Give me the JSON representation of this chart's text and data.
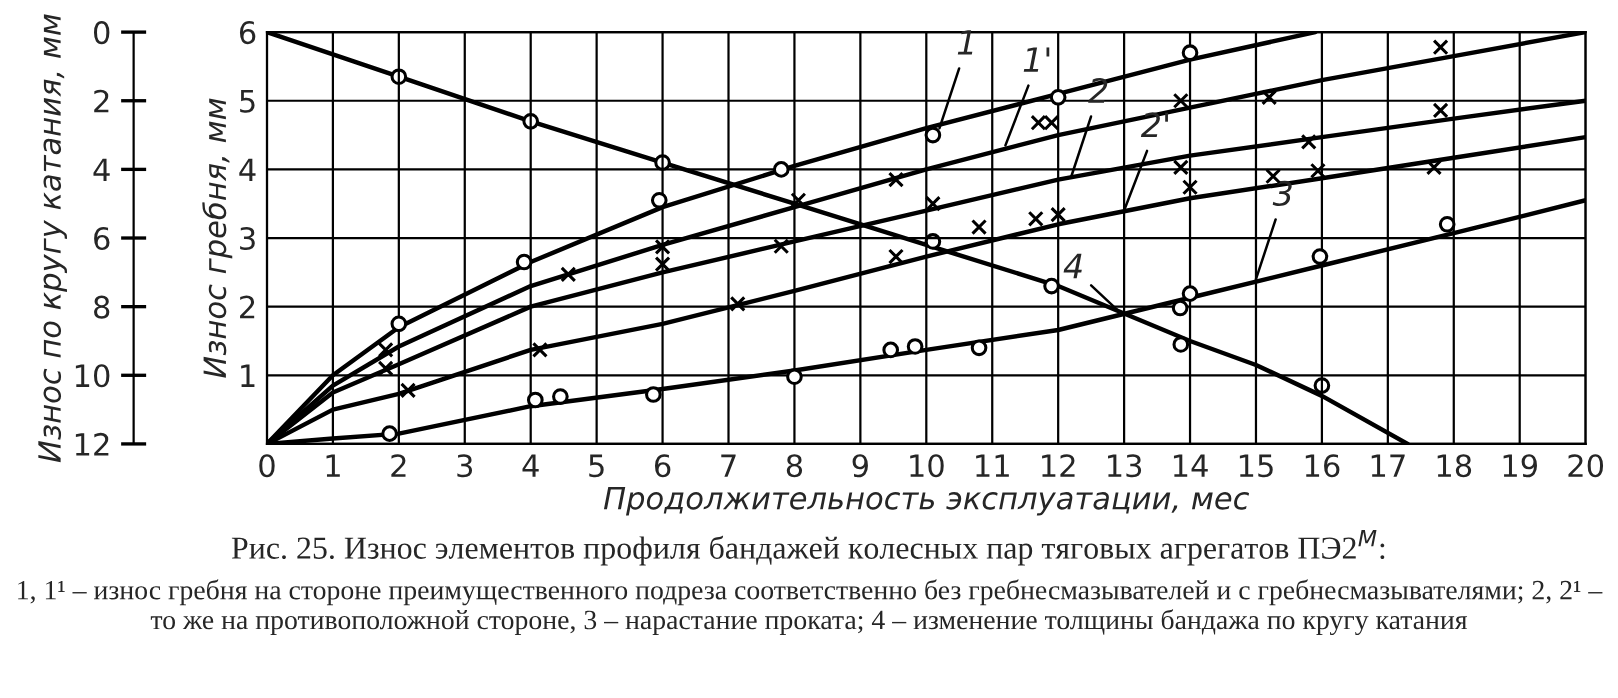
{
  "chart_data": {
    "type": "line",
    "title": "Рис. 25. Износ элементов профиля бандажей колесных пар тяговых агрегатов ПЭ2$^{М}$:",
    "xlabel": "Продолжительность эксплуатации, мес",
    "ylabel": "Износ гребня, мм",
    "y2label": "Износ по кругу катания, мм",
    "xlim": [
      0,
      20
    ],
    "xticks": [
      0,
      1,
      2,
      3,
      4,
      5,
      6,
      7,
      8,
      9,
      10,
      11,
      12,
      13,
      14,
      15,
      16,
      17,
      18,
      19,
      20
    ],
    "ylim": [
      0,
      6
    ],
    "yticks": [
      {
        "value": 0,
        "label": null
      },
      1,
      2,
      3,
      4,
      5,
      6
    ],
    "y2lim": [
      12,
      0
    ],
    "y2ticks": [
      0,
      2,
      4,
      6,
      8,
      10,
      12
    ],
    "grid": true,
    "marker": "none",
    "line_style": "solid",
    "series": [
      {
        "type": "line",
        "color": "#000000",
        "x": [
          0,
          1,
          2,
          4,
          6,
          8,
          10,
          12,
          14,
          15.9
        ],
        "values": [
          0,
          1.0,
          1.7,
          2.65,
          3.45,
          4.05,
          4.6,
          5.1,
          5.6,
          6.0
        ]
      },
      {
        "type": "line",
        "color": "#000000",
        "x": [
          0,
          1,
          2,
          4,
          6,
          8,
          10,
          12,
          14,
          16,
          18,
          20
        ],
        "values": [
          0,
          0.85,
          1.42,
          2.3,
          2.9,
          3.45,
          4.0,
          4.5,
          4.9,
          5.3,
          5.65,
          6.0
        ]
      },
      {
        "type": "line",
        "color": "#000000",
        "x": [
          0,
          1,
          2,
          4,
          6,
          8,
          10,
          12,
          14,
          16,
          18,
          20
        ],
        "values": [
          0,
          0.75,
          1.16,
          2.0,
          2.5,
          2.95,
          3.4,
          3.85,
          4.2,
          4.47,
          4.74,
          5.0
        ]
      },
      {
        "type": "line",
        "color": "#000000",
        "x": [
          0,
          1,
          2,
          4,
          6,
          8,
          10,
          12,
          14,
          16,
          18,
          20
        ],
        "values": [
          0,
          0.5,
          0.73,
          1.37,
          1.75,
          2.23,
          2.73,
          3.2,
          3.58,
          3.87,
          4.17,
          4.47
        ]
      },
      {
        "type": "line",
        "color": "#000000",
        "x": [
          0,
          1,
          2,
          4,
          6,
          8,
          10,
          12,
          14,
          16,
          18,
          20
        ],
        "values": [
          0,
          0.08,
          0.15,
          0.55,
          0.8,
          1.07,
          1.37,
          1.66,
          2.13,
          2.6,
          3.07,
          3.55
        ]
      },
      {
        "type": "line",
        "color": "#000000",
        "axis": "y2",
        "x": [
          0,
          2,
          4,
          6,
          8,
          10,
          12,
          13,
          14,
          15,
          16,
          17.3
        ],
        "values": [
          0,
          1.3,
          2.6,
          3.8,
          5.0,
          6.2,
          7.4,
          8.2,
          9.0,
          9.7,
          10.6,
          12
        ]
      },
      {
        "type": "scatter",
        "color": "#000000",
        "marker": "circle",
        "x": [
          2,
          3.9,
          5.95,
          7.8,
          10.1,
          12,
          14,
          1.86,
          4.07,
          4.45,
          5.86,
          8.0,
          9.46,
          9.83,
          10.8,
          14.0,
          13.85,
          15.97,
          17.9
        ],
        "values": [
          1.75,
          2.65,
          3.55,
          4.0,
          4.5,
          5.05,
          5.7,
          0.15,
          0.64,
          0.69,
          0.72,
          0.98,
          1.37,
          1.42,
          1.4,
          2.19,
          1.98,
          2.73,
          3.2
        ]
      },
      {
        "type": "scatter",
        "color": "#000000",
        "marker": "circle",
        "axis": "y2",
        "x": [
          2,
          4,
          6,
          10.1,
          11.9,
          13.86,
          16
        ],
        "values": [
          1.3,
          2.6,
          3.8,
          6.1,
          7.4,
          9.1,
          10.3
        ]
      },
      {
        "type": "scatter",
        "color": "#000000",
        "marker": "cross",
        "x": [
          1.8,
          1.8,
          2.14,
          4.57,
          4.14,
          6.0,
          6.0,
          7.8,
          8.06,
          9.54,
          10.1,
          9.54,
          7.14,
          10.8,
          11.66,
          12.0,
          11.7,
          11.9,
          13.86,
          15.2,
          17.8,
          13.86,
          14.0,
          15.8,
          15.94,
          15.26,
          17.8,
          17.7
        ],
        "values": [
          1.37,
          1.1,
          0.78,
          2.47,
          1.37,
          2.87,
          2.62,
          2.88,
          3.55,
          3.85,
          3.5,
          2.73,
          2.04,
          3.16,
          3.28,
          3.34,
          4.68,
          4.68,
          5.0,
          5.05,
          5.78,
          4.03,
          3.74,
          4.4,
          3.98,
          3.9,
          4.86,
          4.03
        ]
      }
    ],
    "annotations": [
      {
        "text": "1",
        "x": 10.2,
        "y": 4.6
      },
      {
        "text": "1'",
        "x": 11.2,
        "y": 4.35
      },
      {
        "text": "2",
        "x": 12.2,
        "y": 3.9
      },
      {
        "text": "2'",
        "x": 13.0,
        "y": 3.4
      },
      {
        "text": "3",
        "x": 15.0,
        "y": 2.4
      },
      {
        "text": "4",
        "x": 12.9,
        "y": 1.95
      },
      "1, 1¹ – износ гребня на стороне преимущественного подреза соответственно без гребнесмазывателей и с гребнесмазывателями; 2, 2¹ – то же на противоположной стороне, 3 – нарастание проката; 4 – изменение толщины бандажа по кругу катания"
    ]
  }
}
